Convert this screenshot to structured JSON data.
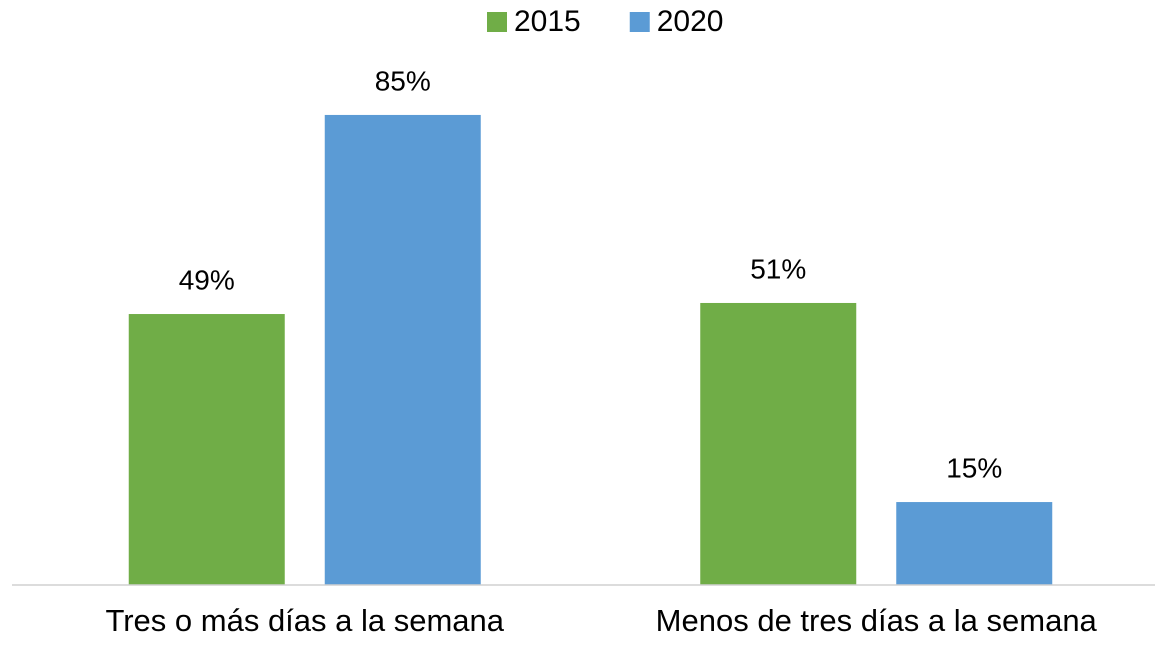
{
  "chart_data": {
    "type": "bar",
    "categories": [
      "Tres o más días a la semana",
      "Menos de tres días a la semana"
    ],
    "series": [
      {
        "name": "2015",
        "color": "#70ad47",
        "values": [
          49,
          51
        ],
        "value_labels": [
          "49%",
          "51%"
        ]
      },
      {
        "name": "2020",
        "color": "#5b9bd5",
        "values": [
          85,
          15
        ],
        "value_labels": [
          "85%",
          "15%"
        ]
      }
    ],
    "ylim": [
      0,
      100
    ],
    "legend": "top"
  }
}
